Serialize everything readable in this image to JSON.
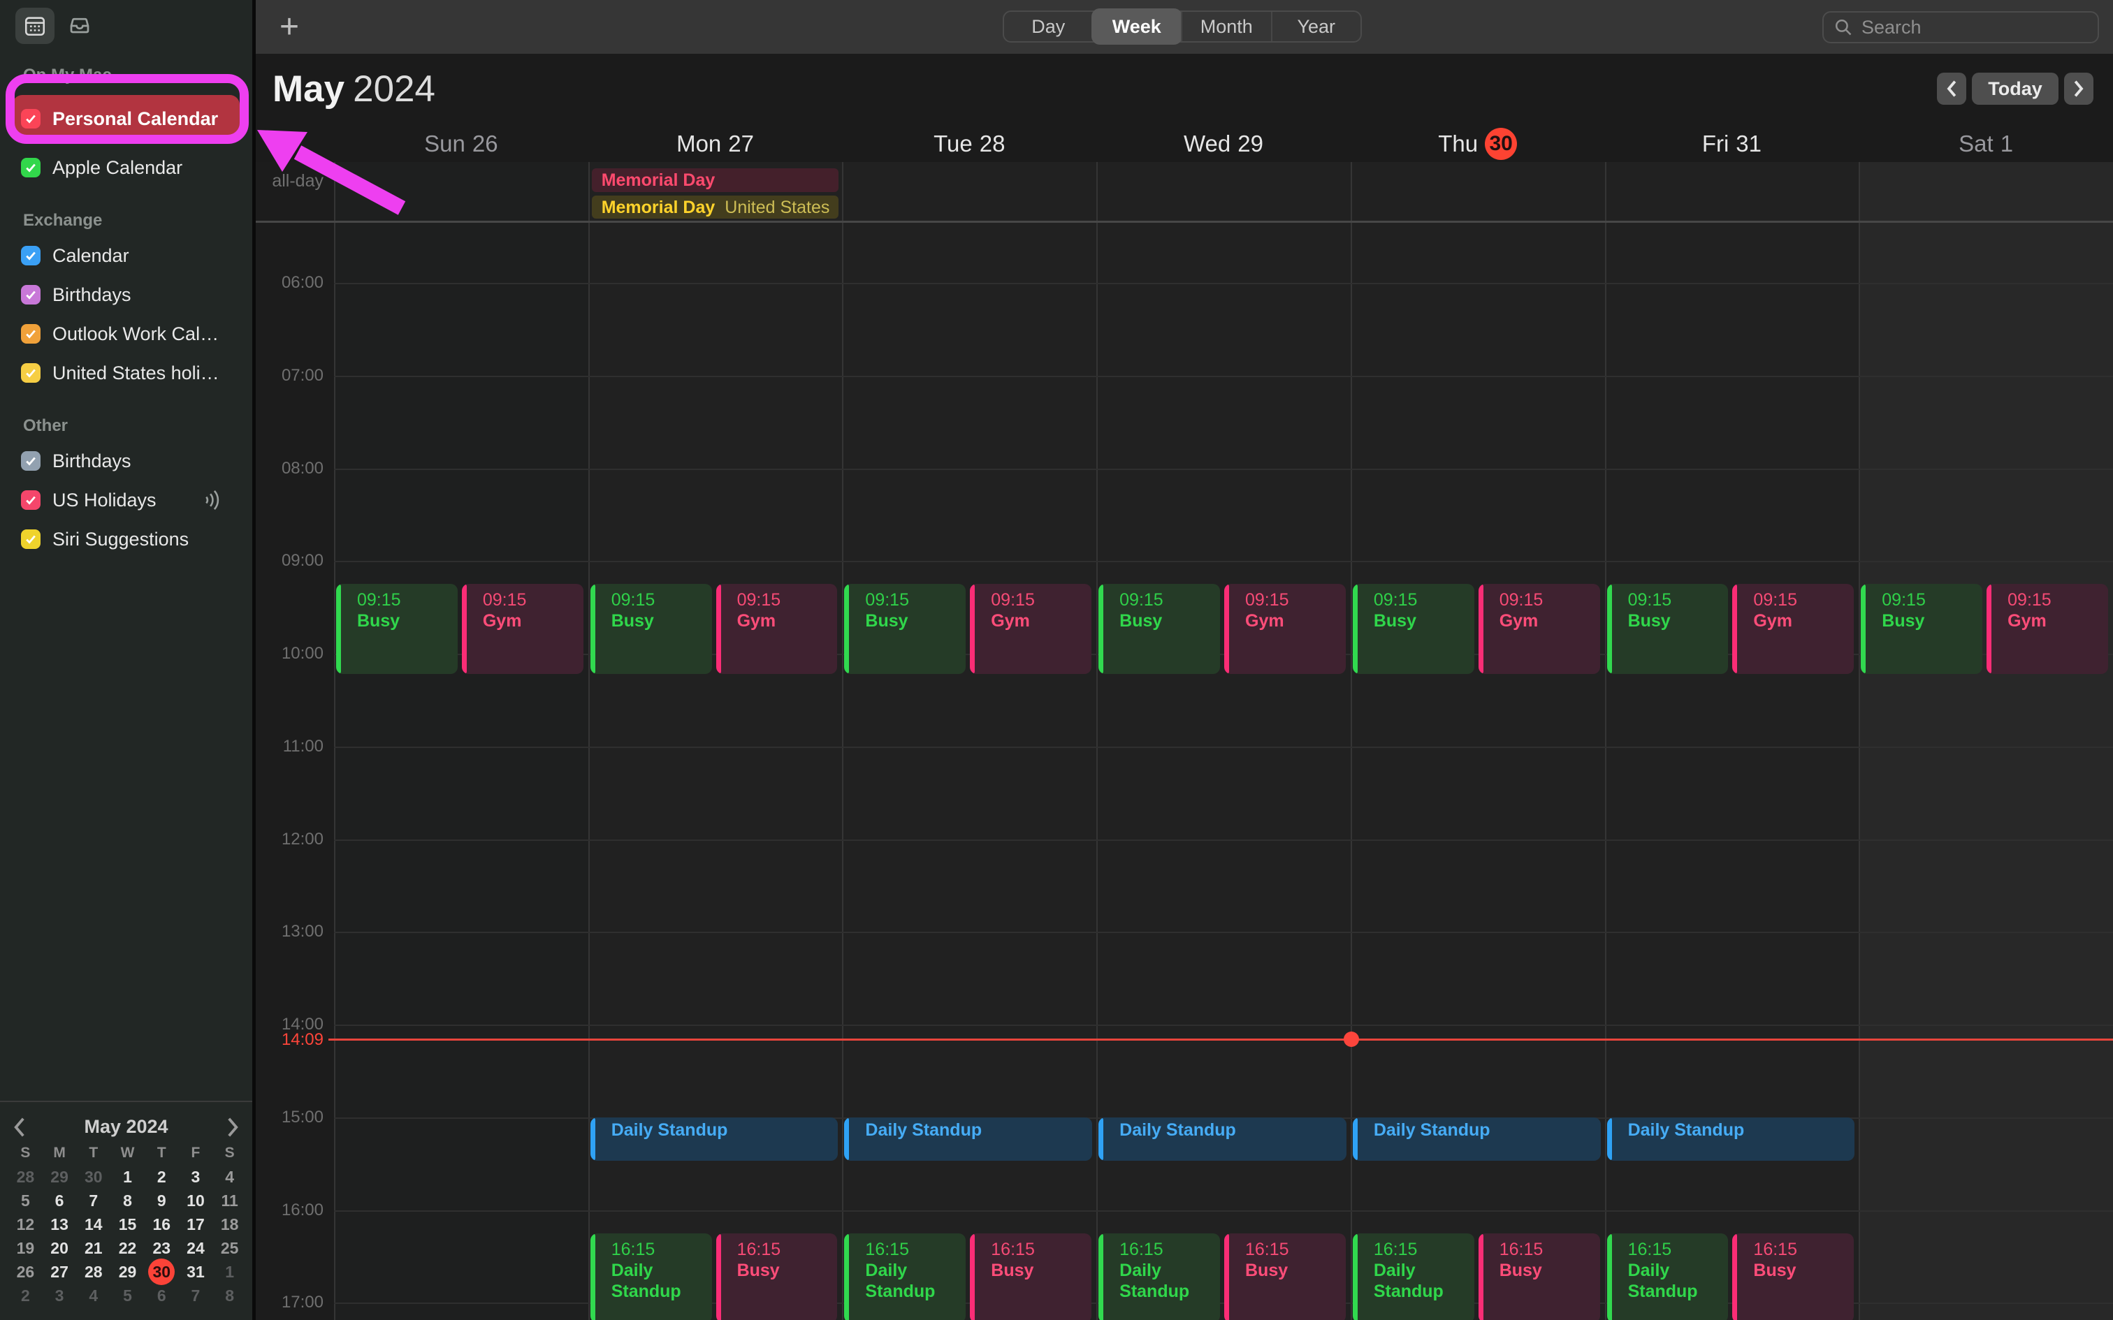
{
  "toolbar": {
    "plus_label": "+",
    "view_tabs": {
      "options": [
        "Day",
        "Week",
        "Month",
        "Year"
      ],
      "active": "Week"
    },
    "search": {
      "placeholder": "Search"
    }
  },
  "header": {
    "title_month": "May",
    "title_year": "2024",
    "today_button": "Today"
  },
  "sidebar": {
    "groups": [
      {
        "title": "On My Mac",
        "items": [
          {
            "label": "Personal Calendar",
            "color": "#fb4457",
            "checked": true,
            "selected": true
          },
          {
            "label": "Apple Calendar",
            "color": "#32d74b",
            "checked": true
          }
        ]
      },
      {
        "title": "Exchange",
        "items": [
          {
            "label": "Calendar",
            "color": "#3aa0f5",
            "checked": true
          },
          {
            "label": "Birthdays",
            "color": "#c878d8",
            "checked": true
          },
          {
            "label": "Outlook Work Cal…",
            "color": "#f0a13a",
            "checked": true
          },
          {
            "label": "United States holi…",
            "color": "#f6ce44",
            "checked": true
          }
        ]
      },
      {
        "title": "Other",
        "items": [
          {
            "label": "Birthdays",
            "color": "#92a1b0",
            "checked": true
          },
          {
            "label": "US Holidays",
            "color": "#f5466b",
            "checked": true,
            "shared": true
          },
          {
            "label": "Siri Suggestions",
            "color": "#efd32c",
            "checked": true
          }
        ]
      }
    ]
  },
  "calendar": {
    "day_headers": [
      {
        "name": "Sun",
        "num": "26",
        "style": "muted"
      },
      {
        "name": "Mon",
        "num": "27",
        "style": "normal"
      },
      {
        "name": "Tue",
        "num": "28",
        "style": "normal"
      },
      {
        "name": "Wed",
        "num": "29",
        "style": "normal"
      },
      {
        "name": "Thu",
        "num": "30",
        "style": "today"
      },
      {
        "name": "Fri",
        "num": "31",
        "style": "normal"
      },
      {
        "name": "Sat",
        "num": "1",
        "style": "muted"
      }
    ],
    "allday": {
      "label": "all-day",
      "events": [
        {
          "day": 1,
          "title": "Memorial Day",
          "subtitle": "",
          "kind": "red"
        },
        {
          "day": 1,
          "title": "Memorial Day",
          "subtitle": "United States",
          "kind": "yellow"
        }
      ]
    },
    "hours": [
      "06:00",
      "07:00",
      "08:00",
      "09:00",
      "10:00",
      "11:00",
      "12:00",
      "13:00",
      "14:00",
      "15:00",
      "16:00",
      "17:00"
    ],
    "events": [
      {
        "day": 0,
        "start": "09:15",
        "end": "10:15",
        "time": "09:15",
        "title": "Busy",
        "kind": "green",
        "slot": "left"
      },
      {
        "day": 0,
        "start": "09:15",
        "end": "10:15",
        "time": "09:15",
        "title": "Gym",
        "kind": "pink",
        "slot": "right"
      },
      {
        "day": 1,
        "start": "09:15",
        "end": "10:15",
        "time": "09:15",
        "title": "Busy",
        "kind": "green",
        "slot": "left"
      },
      {
        "day": 1,
        "start": "09:15",
        "end": "10:15",
        "time": "09:15",
        "title": "Gym",
        "kind": "pink",
        "slot": "right"
      },
      {
        "day": 2,
        "start": "09:15",
        "end": "10:15",
        "time": "09:15",
        "title": "Busy",
        "kind": "green",
        "slot": "left"
      },
      {
        "day": 2,
        "start": "09:15",
        "end": "10:15",
        "time": "09:15",
        "title": "Gym",
        "kind": "pink",
        "slot": "right"
      },
      {
        "day": 3,
        "start": "09:15",
        "end": "10:15",
        "time": "09:15",
        "title": "Busy",
        "kind": "green",
        "slot": "left"
      },
      {
        "day": 3,
        "start": "09:15",
        "end": "10:15",
        "time": "09:15",
        "title": "Gym",
        "kind": "pink",
        "slot": "right"
      },
      {
        "day": 4,
        "start": "09:15",
        "end": "10:15",
        "time": "09:15",
        "title": "Busy",
        "kind": "green",
        "slot": "left"
      },
      {
        "day": 4,
        "start": "09:15",
        "end": "10:15",
        "time": "09:15",
        "title": "Gym",
        "kind": "pink",
        "slot": "right"
      },
      {
        "day": 5,
        "start": "09:15",
        "end": "10:15",
        "time": "09:15",
        "title": "Busy",
        "kind": "green",
        "slot": "left"
      },
      {
        "day": 5,
        "start": "09:15",
        "end": "10:15",
        "time": "09:15",
        "title": "Gym",
        "kind": "pink",
        "slot": "right"
      },
      {
        "day": 6,
        "start": "09:15",
        "end": "10:15",
        "time": "09:15",
        "title": "Busy",
        "kind": "green",
        "slot": "left"
      },
      {
        "day": 6,
        "start": "09:15",
        "end": "10:15",
        "time": "09:15",
        "title": "Gym",
        "kind": "pink",
        "slot": "right"
      },
      {
        "day": 1,
        "start": "15:00",
        "end": "15:30",
        "time": "",
        "title": "Daily Standup",
        "kind": "blue",
        "slot": "full"
      },
      {
        "day": 2,
        "start": "15:00",
        "end": "15:30",
        "time": "",
        "title": "Daily Standup",
        "kind": "blue",
        "slot": "full"
      },
      {
        "day": 3,
        "start": "15:00",
        "end": "15:30",
        "time": "",
        "title": "Daily Standup",
        "kind": "blue",
        "slot": "full"
      },
      {
        "day": 4,
        "start": "15:00",
        "end": "15:30",
        "time": "",
        "title": "Daily Standup",
        "kind": "blue",
        "slot": "full"
      },
      {
        "day": 5,
        "start": "15:00",
        "end": "15:30",
        "time": "",
        "title": "Daily Standup",
        "kind": "blue",
        "slot": "full"
      },
      {
        "day": 1,
        "start": "16:15",
        "end": "17:15",
        "time": "16:15",
        "title": "Daily Standup",
        "kind": "green",
        "slot": "left"
      },
      {
        "day": 1,
        "start": "16:15",
        "end": "17:15",
        "time": "16:15",
        "title": "Busy",
        "kind": "pink",
        "slot": "right"
      },
      {
        "day": 2,
        "start": "16:15",
        "end": "17:15",
        "time": "16:15",
        "title": "Daily Standup",
        "kind": "green",
        "slot": "left"
      },
      {
        "day": 2,
        "start": "16:15",
        "end": "17:15",
        "time": "16:15",
        "title": "Busy",
        "kind": "pink",
        "slot": "right"
      },
      {
        "day": 3,
        "start": "16:15",
        "end": "17:15",
        "time": "16:15",
        "title": "Daily Standup",
        "kind": "green",
        "slot": "left"
      },
      {
        "day": 3,
        "start": "16:15",
        "end": "17:15",
        "time": "16:15",
        "title": "Busy",
        "kind": "pink",
        "slot": "right"
      },
      {
        "day": 4,
        "start": "16:15",
        "end": "17:15",
        "time": "16:15",
        "title": "Daily Standup",
        "kind": "green",
        "slot": "left"
      },
      {
        "day": 4,
        "start": "16:15",
        "end": "17:15",
        "time": "16:15",
        "title": "Busy",
        "kind": "pink",
        "slot": "right"
      },
      {
        "day": 5,
        "start": "16:15",
        "end": "17:15",
        "time": "16:15",
        "title": "Daily Standup",
        "kind": "green",
        "slot": "left"
      },
      {
        "day": 5,
        "start": "16:15",
        "end": "17:15",
        "time": "16:15",
        "title": "Busy",
        "kind": "pink",
        "slot": "right"
      }
    ],
    "now": {
      "time": "14:09",
      "label": "14:09",
      "day": 4
    }
  },
  "mini_calendar": {
    "title": "May 2024",
    "letters": [
      "S",
      "M",
      "T",
      "W",
      "T",
      "F",
      "S"
    ],
    "weeks": [
      [
        {
          "t": "28",
          "k": "dim"
        },
        {
          "t": "29",
          "k": "dim"
        },
        {
          "t": "30",
          "k": "dim"
        },
        {
          "t": "1",
          "k": "wk"
        },
        {
          "t": "2",
          "k": "wk"
        },
        {
          "t": "3",
          "k": "wk"
        },
        {
          "t": "4",
          "k": "we"
        }
      ],
      [
        {
          "t": "5",
          "k": "we"
        },
        {
          "t": "6",
          "k": "wk"
        },
        {
          "t": "7",
          "k": "wk"
        },
        {
          "t": "8",
          "k": "wk"
        },
        {
          "t": "9",
          "k": "wk"
        },
        {
          "t": "10",
          "k": "wk"
        },
        {
          "t": "11",
          "k": "we"
        }
      ],
      [
        {
          "t": "12",
          "k": "we"
        },
        {
          "t": "13",
          "k": "wk"
        },
        {
          "t": "14",
          "k": "wk"
        },
        {
          "t": "15",
          "k": "wk"
        },
        {
          "t": "16",
          "k": "wk"
        },
        {
          "t": "17",
          "k": "wk"
        },
        {
          "t": "18",
          "k": "we"
        }
      ],
      [
        {
          "t": "19",
          "k": "we"
        },
        {
          "t": "20",
          "k": "wk"
        },
        {
          "t": "21",
          "k": "wk"
        },
        {
          "t": "22",
          "k": "wk"
        },
        {
          "t": "23",
          "k": "wk"
        },
        {
          "t": "24",
          "k": "wk"
        },
        {
          "t": "25",
          "k": "we"
        }
      ],
      [
        {
          "t": "26",
          "k": "we"
        },
        {
          "t": "27",
          "k": "wk"
        },
        {
          "t": "28",
          "k": "wk"
        },
        {
          "t": "29",
          "k": "wk"
        },
        {
          "t": "30",
          "k": "today"
        },
        {
          "t": "31",
          "k": "wk"
        },
        {
          "t": "1",
          "k": "dim"
        }
      ],
      [
        {
          "t": "2",
          "k": "dim"
        },
        {
          "t": "3",
          "k": "dim"
        },
        {
          "t": "4",
          "k": "dim"
        },
        {
          "t": "5",
          "k": "dim"
        },
        {
          "t": "6",
          "k": "dim"
        },
        {
          "t": "7",
          "k": "dim"
        },
        {
          "t": "8",
          "k": "dim"
        }
      ]
    ]
  },
  "annotation": {
    "color": "#ee3ff0"
  },
  "colors": {
    "event_green": "#30d74b",
    "event_pink": "#fb2d76",
    "event_blue": "#2fa2f5",
    "today_red": "#fd4332",
    "selected_row_red": "#b23440"
  }
}
